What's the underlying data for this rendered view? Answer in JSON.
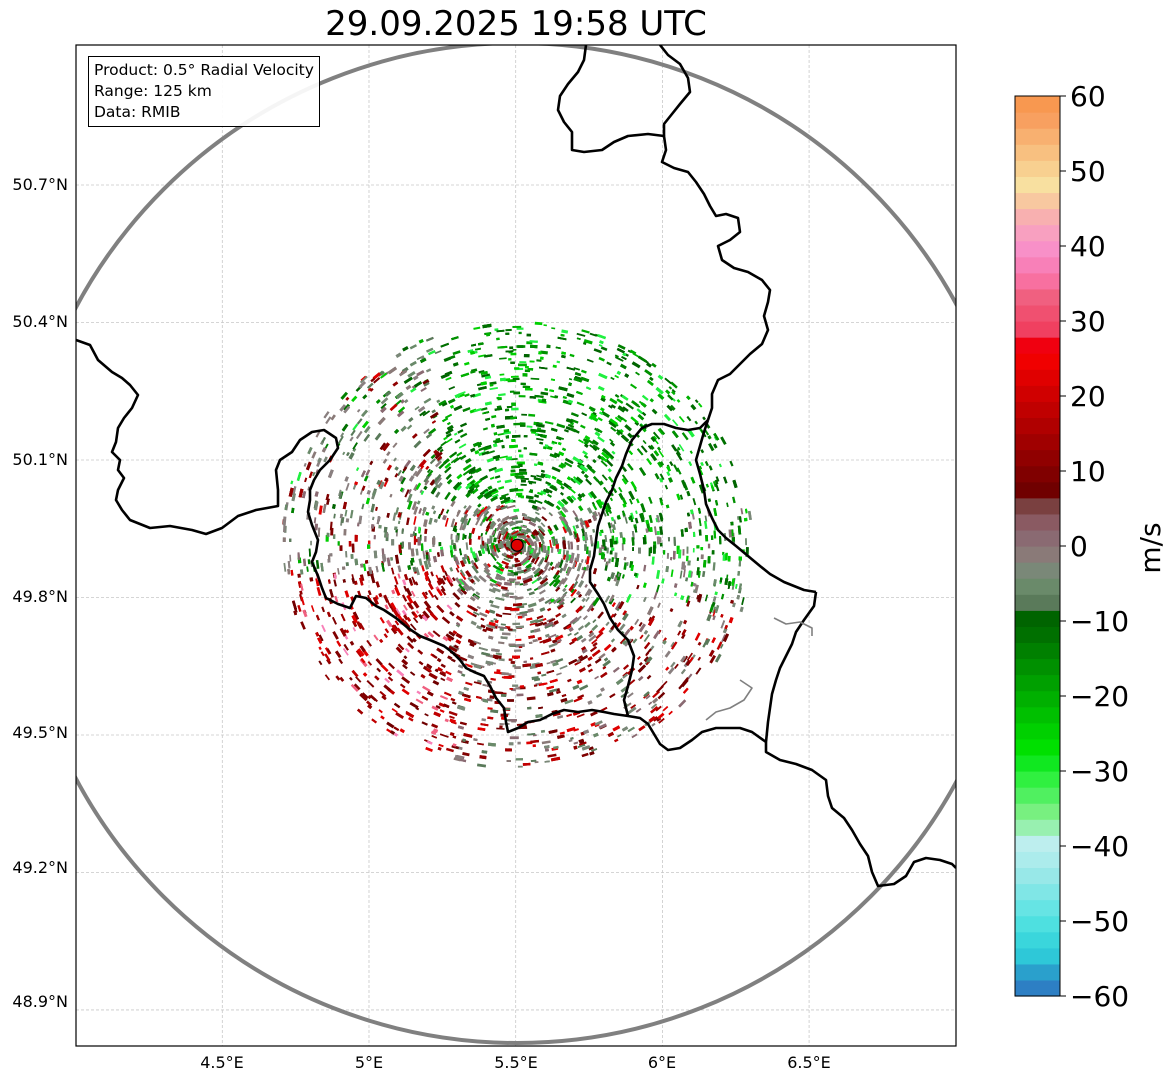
{
  "title": "29.09.2025 19:58 UTC",
  "info": {
    "product": "Product: 0.5° Radial Velocity",
    "range": "Range: 125 km",
    "data": "Data: RMIB"
  },
  "lat_labels": [
    "50.7°N",
    "50.4°N",
    "50.1°N",
    "49.8°N",
    "49.5°N",
    "49.2°N",
    "48.9°N"
  ],
  "lon_labels": [
    "4.5°E",
    "5°E",
    "5.5°E",
    "6°E",
    "6.5°E"
  ],
  "colorbar": {
    "unit": "m/s",
    "ticks": [
      "60",
      "50",
      "40",
      "30",
      "20",
      "10",
      "0",
      "−10",
      "−20",
      "−30",
      "−40",
      "−50",
      "−60"
    ],
    "min": -60,
    "max": 60,
    "colors": [
      "#2d7fc4",
      "#2aa0cc",
      "#2ec8d8",
      "#3ad6dc",
      "#4ee0e0",
      "#66e4e4",
      "#80e6e6",
      "#98e8e8",
      "#acecec",
      "#bdeeee",
      "#98f0b0",
      "#78f080",
      "#50f060",
      "#30f040",
      "#10e820",
      "#00e000",
      "#00d000",
      "#00c000",
      "#00b000",
      "#00a000",
      "#009000",
      "#008000",
      "#007000",
      "#006400",
      "#5a7a5a",
      "#6a8a6a",
      "#7a8878",
      "#8a7a78",
      "#8a6a72",
      "#8a5a62",
      "#7a4040",
      "#700000",
      "#800000",
      "#900000",
      "#a00000",
      "#b00000",
      "#c00000",
      "#d00000",
      "#e00000",
      "#f00000",
      "#f00010",
      "#f04060",
      "#f05070",
      "#f06080",
      "#f870a0",
      "#f880b8",
      "#f890c8",
      "#f8a0c0",
      "#f8b0b0",
      "#f8c8a0",
      "#f8e0a0",
      "#f8d090",
      "#f8c080",
      "#f8b070",
      "#f8a060",
      "#f89850"
    ]
  },
  "radar_site": {
    "lon": 5.505,
    "lat": 49.914,
    "color": "#e00000"
  },
  "colors": {
    "range_ring": "#808080",
    "border": "#000000",
    "grid": "#c8c8c8"
  }
}
